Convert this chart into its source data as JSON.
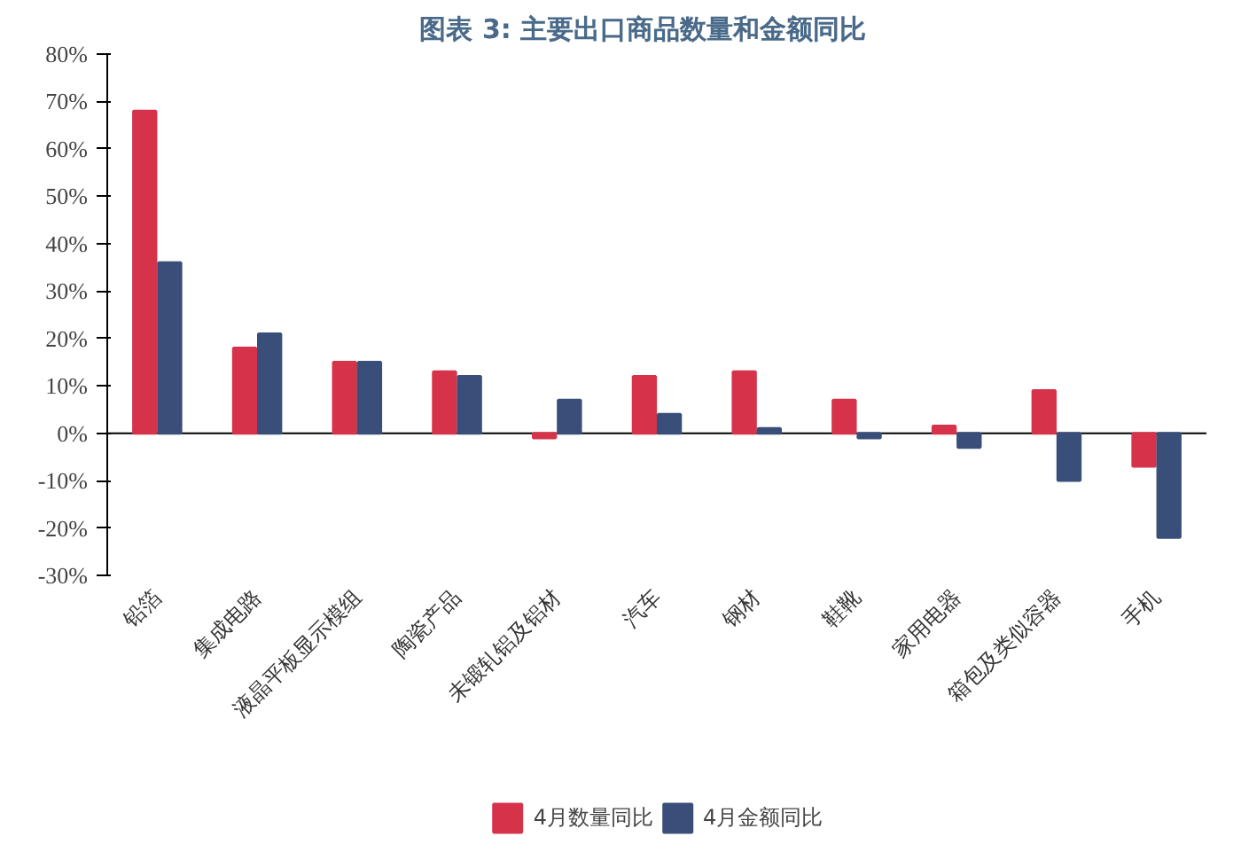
{
  "chart_data": {
    "type": "bar",
    "title": "图表 3:    主要出口商品数量和金额同比",
    "categories": [
      "铅箔",
      "集成电路",
      "液晶平板显示模组",
      "陶瓷产品",
      "未锻轧铝及铝材",
      "汽车",
      "钢材",
      "鞋靴",
      "家用电器",
      "箱包及类似容器",
      "手机"
    ],
    "series": [
      {
        "name": "4月数量同比",
        "color": "#d6334a",
        "values": [
          68,
          18,
          15,
          13,
          -1,
          12,
          13,
          7,
          1.5,
          9,
          -7
        ]
      },
      {
        "name": "4月金额同比",
        "color": "#3a4e7a",
        "values": [
          36,
          21,
          15,
          12,
          7,
          4,
          1,
          -1,
          -3,
          -10,
          -22
        ]
      }
    ],
    "ylim": [
      -30,
      80
    ],
    "yticks": [
      {
        "value": -30,
        "label": "-30%"
      },
      {
        "value": -20,
        "label": "-20%"
      },
      {
        "value": -10,
        "label": "-10%"
      },
      {
        "value": 0,
        "label": "0%"
      },
      {
        "value": 10,
        "label": "10%"
      },
      {
        "value": 20,
        "label": "20%"
      },
      {
        "value": 30,
        "label": "30%"
      },
      {
        "value": 40,
        "label": "40%"
      },
      {
        "value": 50,
        "label": "50%"
      },
      {
        "value": 60,
        "label": "60%"
      },
      {
        "value": 70,
        "label": "70%"
      },
      {
        "value": 80,
        "label": "80%"
      }
    ],
    "legend": "bottom"
  }
}
